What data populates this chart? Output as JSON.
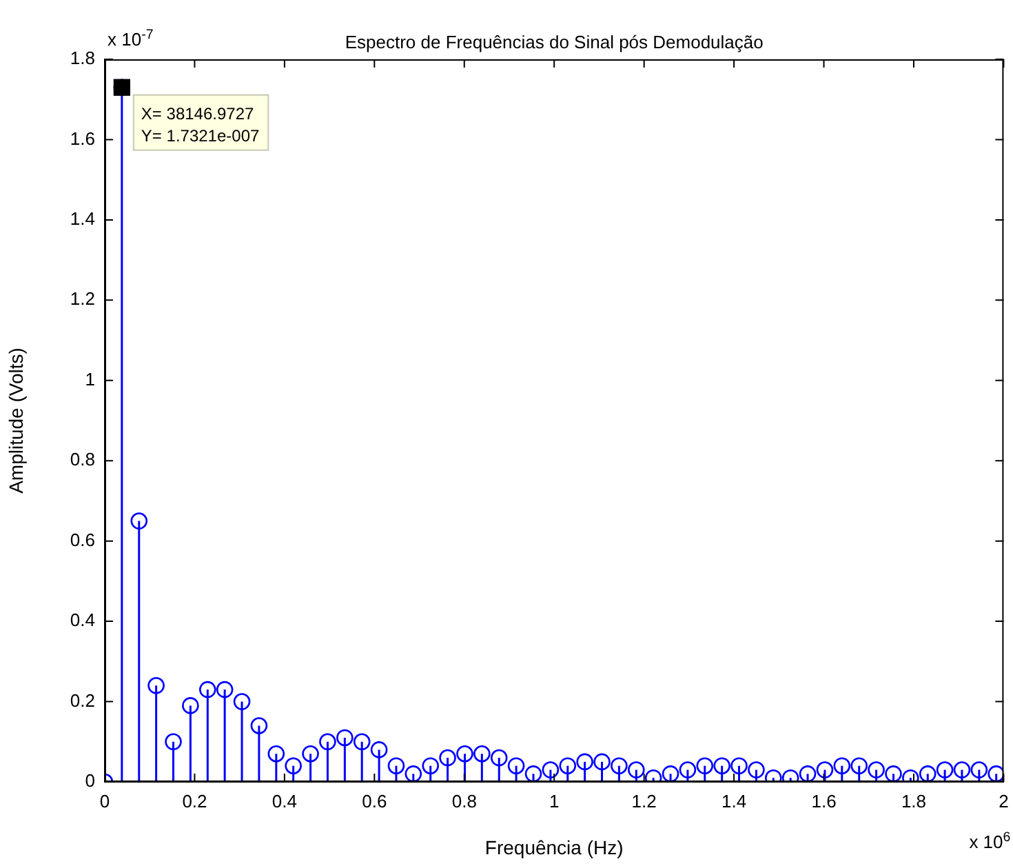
{
  "chart_data": {
    "type": "lollipop",
    "title": "Espectro de Frequências do Sinal pós Demodulação",
    "xlabel": "Frequência (Hz)",
    "ylabel": "Amplitude (Volts)",
    "x": [
      0,
      0.0381,
      0.0763,
      0.1144,
      0.1526,
      0.1907,
      0.2289,
      0.267,
      0.3052,
      0.3433,
      0.3815,
      0.4196,
      0.4578,
      0.4959,
      0.5341,
      0.5722,
      0.6104,
      0.6485,
      0.6866,
      0.7248,
      0.7629,
      0.8011,
      0.8392,
      0.8774,
      0.9155,
      0.9537,
      0.9918,
      1.03,
      1.0681,
      1.1063,
      1.1444,
      1.1826,
      1.2207,
      1.2589,
      1.297,
      1.3351,
      1.3733,
      1.4114,
      1.4496,
      1.4877,
      1.5259,
      1.564,
      1.6022,
      1.6403,
      1.6785,
      1.7166,
      1.7548,
      1.7929,
      1.8311,
      1.8692,
      1.9073,
      1.9455,
      1.9836
    ],
    "values": [
      0,
      1.73,
      0.65,
      0.24,
      0.1,
      0.19,
      0.23,
      0.23,
      0.2,
      0.14,
      0.07,
      0.04,
      0.07,
      0.1,
      0.11,
      0.1,
      0.08,
      0.04,
      0.02,
      0.04,
      0.06,
      0.07,
      0.07,
      0.06,
      0.04,
      0.02,
      0.03,
      0.04,
      0.05,
      0.05,
      0.04,
      0.03,
      0.01,
      0.02,
      0.03,
      0.04,
      0.04,
      0.04,
      0.03,
      0.01,
      0.01,
      0.02,
      0.03,
      0.04,
      0.04,
      0.03,
      0.02,
      0.01,
      0.02,
      0.03,
      0.03,
      0.03,
      0.02
    ],
    "color": "#0000ff",
    "marker": "circle",
    "xlim": [
      0,
      2
    ],
    "ylim": [
      0,
      1.8
    ],
    "xticks": [
      0,
      0.2,
      0.4,
      0.6,
      0.8,
      1,
      1.2,
      1.4,
      1.6,
      1.8,
      2
    ],
    "yticks": [
      0,
      0.2,
      0.4,
      0.6,
      0.8,
      1,
      1.2,
      1.4,
      1.6,
      1.8
    ],
    "annotations": [
      "x 10$^{-7}$",
      "x 10$^{6}$",
      {
        "text": "X= 38146.9727",
        "x": 0.0381,
        "y": 1.73
      },
      {
        "text": "Y= 1.7321e-007",
        "x": 0.0381,
        "y": 1.73
      }
    ]
  }
}
